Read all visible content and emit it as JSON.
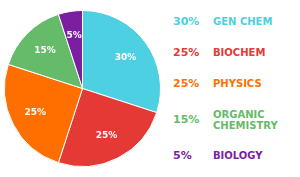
{
  "chart_data": {
    "type": "pie",
    "categories": [
      "GEN CHEM",
      "BIOCHEM",
      "PHYSICS",
      "ORGANIC\nCHEMISTRY",
      "BIOLOGY"
    ],
    "values": [
      30,
      25,
      25,
      15,
      5
    ],
    "value_labels": [
      "30%",
      "25%",
      "25%",
      "15%",
      "5%"
    ],
    "colors": [
      "#4dd0e1",
      "#e53935",
      "#ff6f00",
      "#66bb6a",
      "#7b1fa2"
    ],
    "data_labels": true,
    "legend": "right"
  }
}
